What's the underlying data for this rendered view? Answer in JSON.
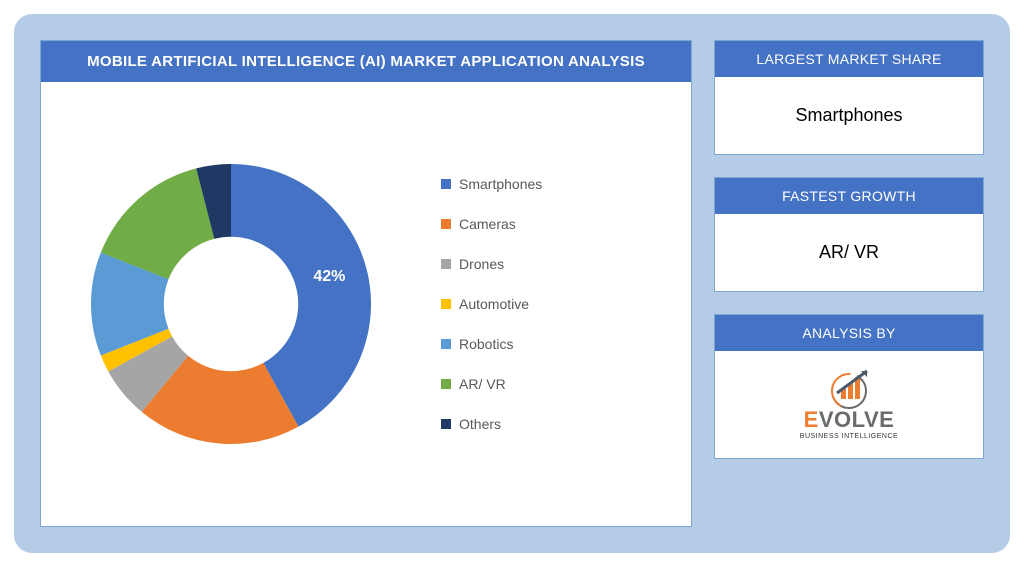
{
  "main": {
    "title": "MOBILE ARTIFICIAL INTELLIGENCE (AI) MARKET APPLICATION ANALYSIS",
    "chart": {
      "type": "donut",
      "background_color": "#ffffff",
      "inner_radius_ratio": 0.48,
      "outer_radius": 140,
      "start_angle_deg": -90,
      "segments": [
        {
          "label": "Smartphones",
          "value": 42,
          "color": "#4472c4",
          "show_pct": true
        },
        {
          "label": "Cameras",
          "value": 19,
          "color": "#ec7c30",
          "show_pct": false
        },
        {
          "label": "Drones",
          "value": 6,
          "color": "#a5a5a5",
          "show_pct": false
        },
        {
          "label": "Automotive",
          "value": 2,
          "color": "#ffc000",
          "show_pct": false
        },
        {
          "label": "Robotics",
          "value": 12,
          "color": "#5b9bd5",
          "show_pct": false
        },
        {
          "label": "AR/ VR",
          "value": 15,
          "color": "#70ad47",
          "show_pct": false
        },
        {
          "label": "Others",
          "value": 4,
          "color": "#1f3864",
          "show_pct": false
        }
      ],
      "pct_label_fontsize": 16,
      "pct_label_color": "#ffffff",
      "legend_fontsize": 14,
      "legend_text_color": "#595959"
    }
  },
  "side": {
    "cards": [
      {
        "header": "LARGEST MARKET SHARE",
        "body": "Smartphones"
      },
      {
        "header": "FASTEST GROWTH",
        "body": "AR/ VR"
      }
    ],
    "analysis": {
      "header": "ANALYSIS BY",
      "logo_main": "EVOLVE",
      "logo_sub": "BUSINESS INTELLIGENCE",
      "logo_colors": {
        "orange": "#ec7c30",
        "gray": "#6b6b6b",
        "arrow": "#4a5a6b"
      }
    }
  },
  "layout": {
    "page_bg": "#b4cce6",
    "panel_border": "#7da7d1",
    "header_bg": "#4472c4",
    "header_text": "#ffffff"
  }
}
